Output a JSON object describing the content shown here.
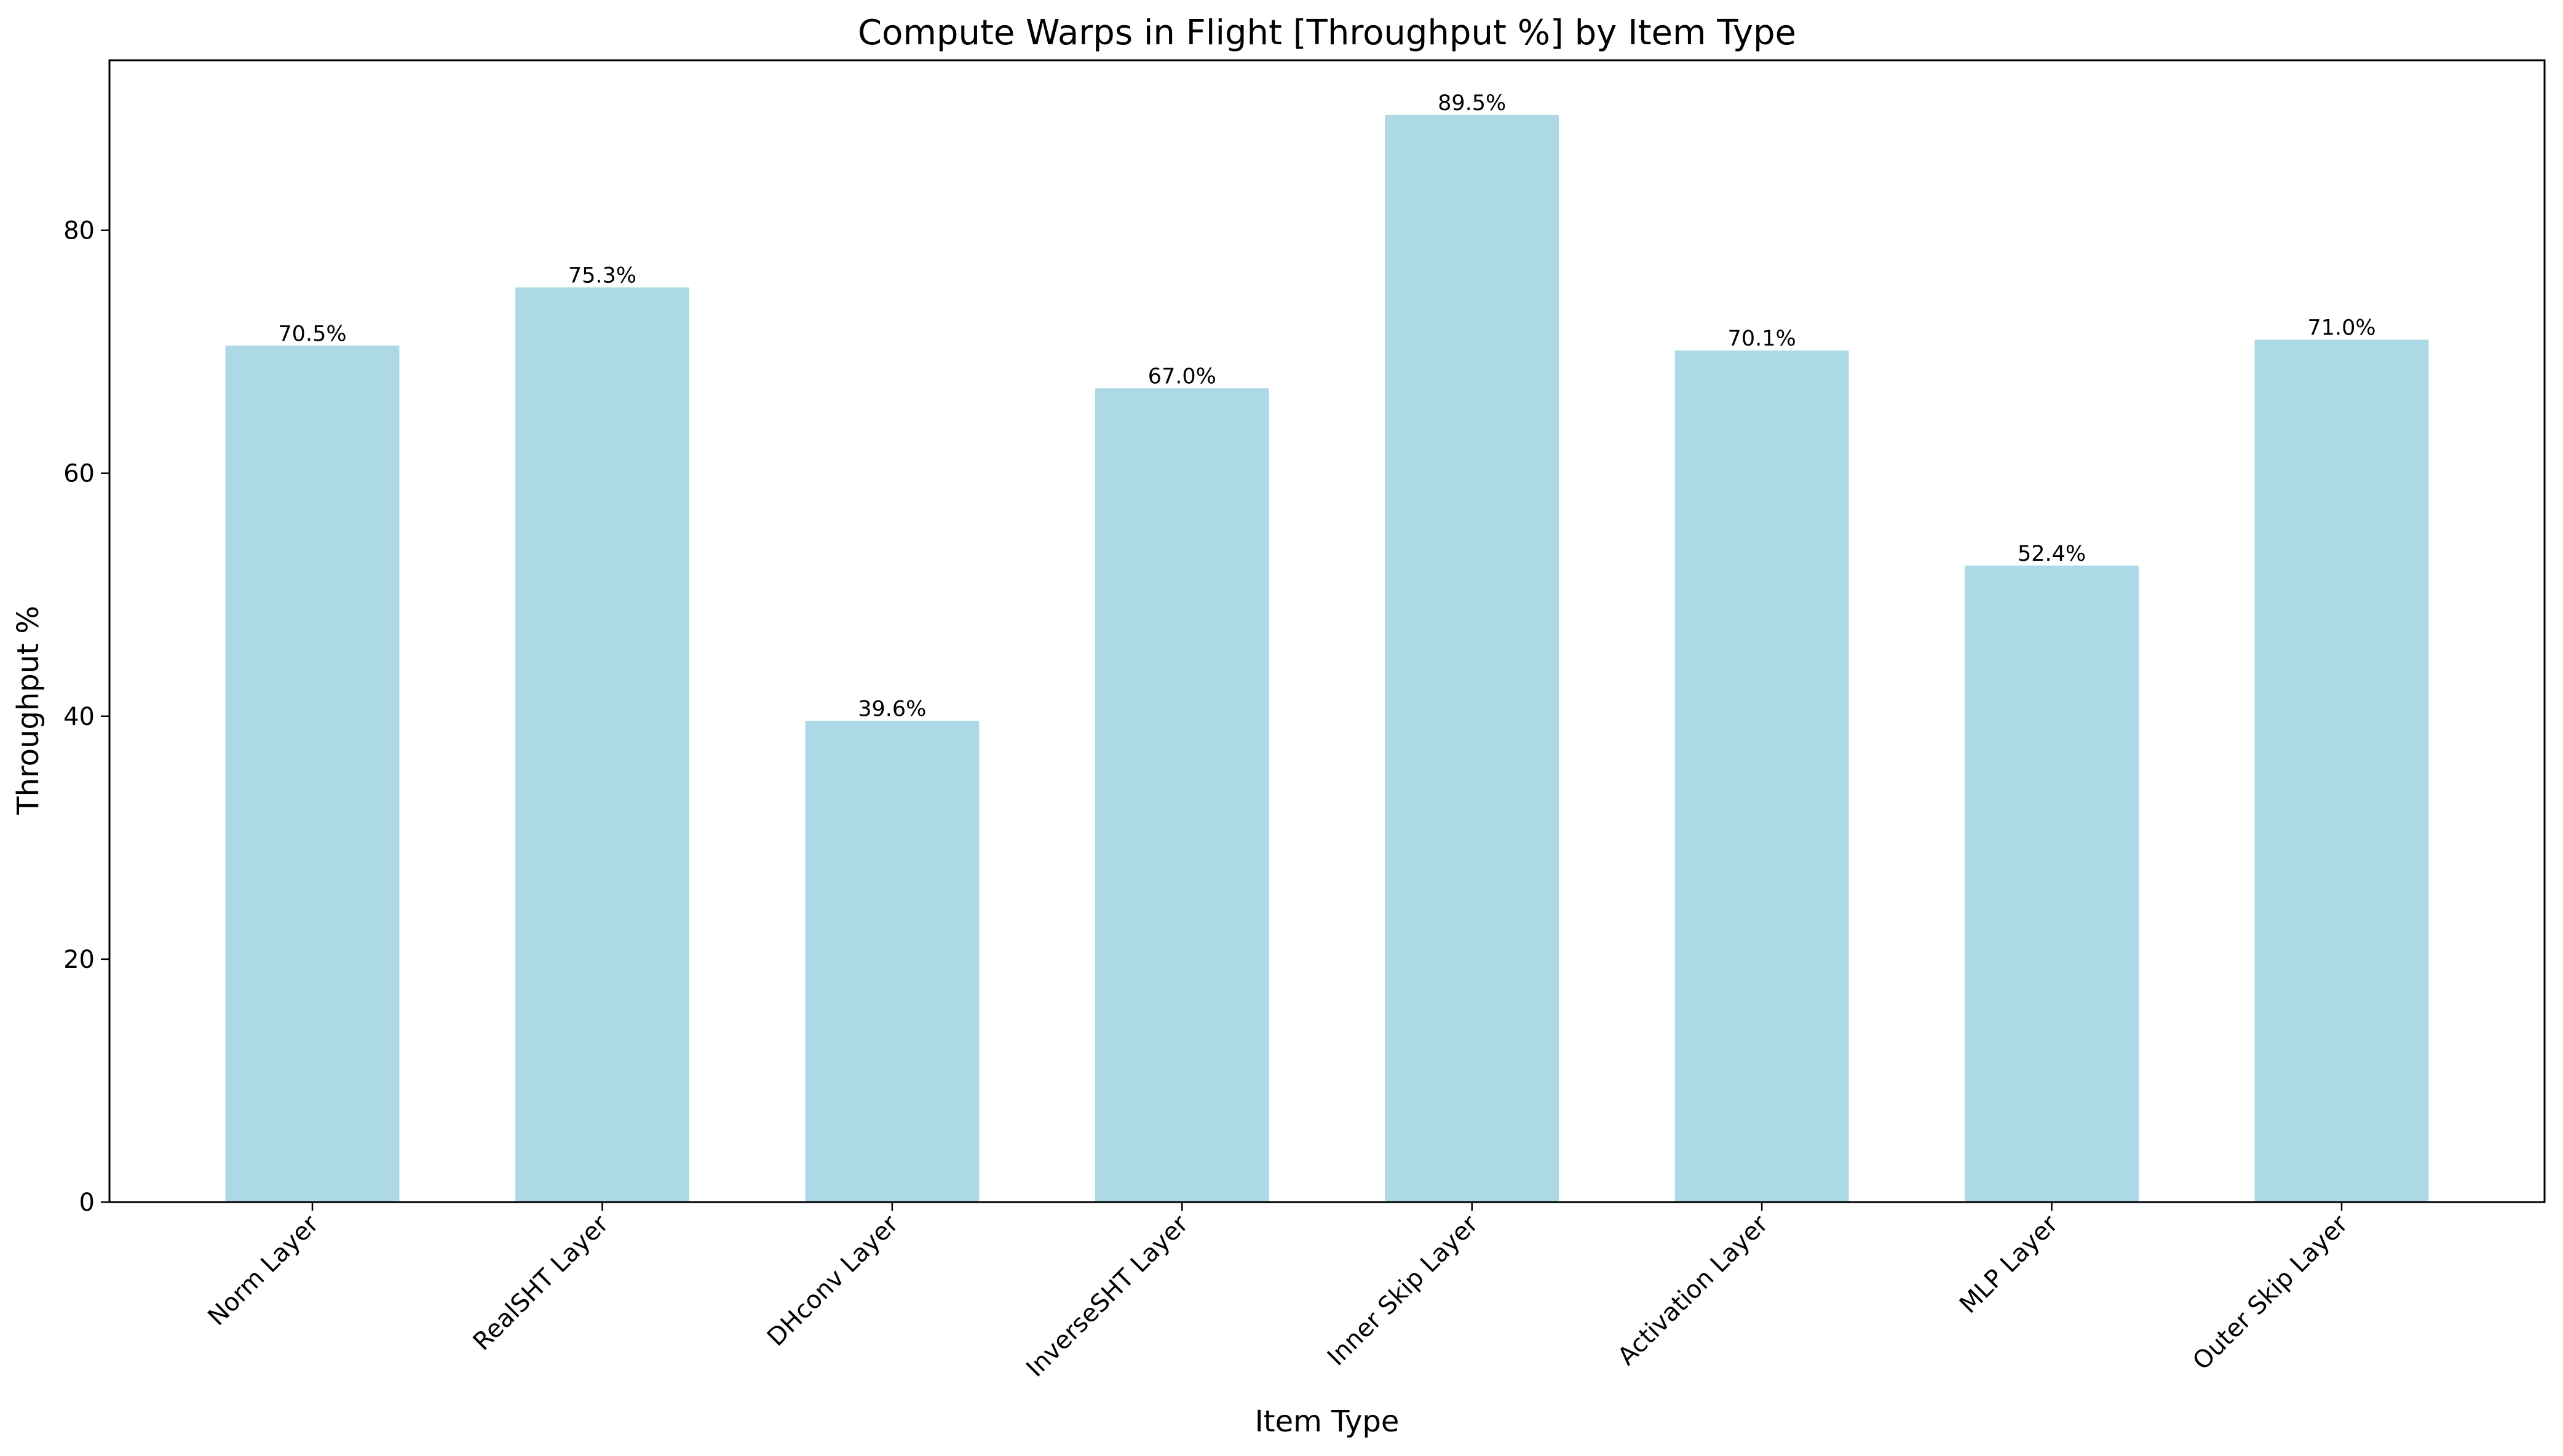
{
  "chart_data": {
    "type": "bar",
    "title": "Compute Warps in Flight [Throughput %] by Item Type",
    "xlabel": "Item Type",
    "ylabel": "Throughput %",
    "categories": [
      "Norm Layer",
      "RealSHT Layer",
      "DHconv Layer",
      "InverseSHT Layer",
      "Inner Skip Layer",
      "Activation Layer",
      "MLP Layer",
      "Outer Skip Layer"
    ],
    "values": [
      70.5,
      75.3,
      39.6,
      67.0,
      89.5,
      70.1,
      52.4,
      71.0
    ],
    "data_labels": [
      "70.5%",
      "75.3%",
      "39.6%",
      "67.0%",
      "89.5%",
      "70.1%",
      "52.4%",
      "71.0%"
    ],
    "ylim": [
      0,
      94
    ],
    "yticks": [
      0,
      20,
      40,
      60,
      80
    ],
    "grid": false,
    "bar_color": "#add8e6"
  }
}
